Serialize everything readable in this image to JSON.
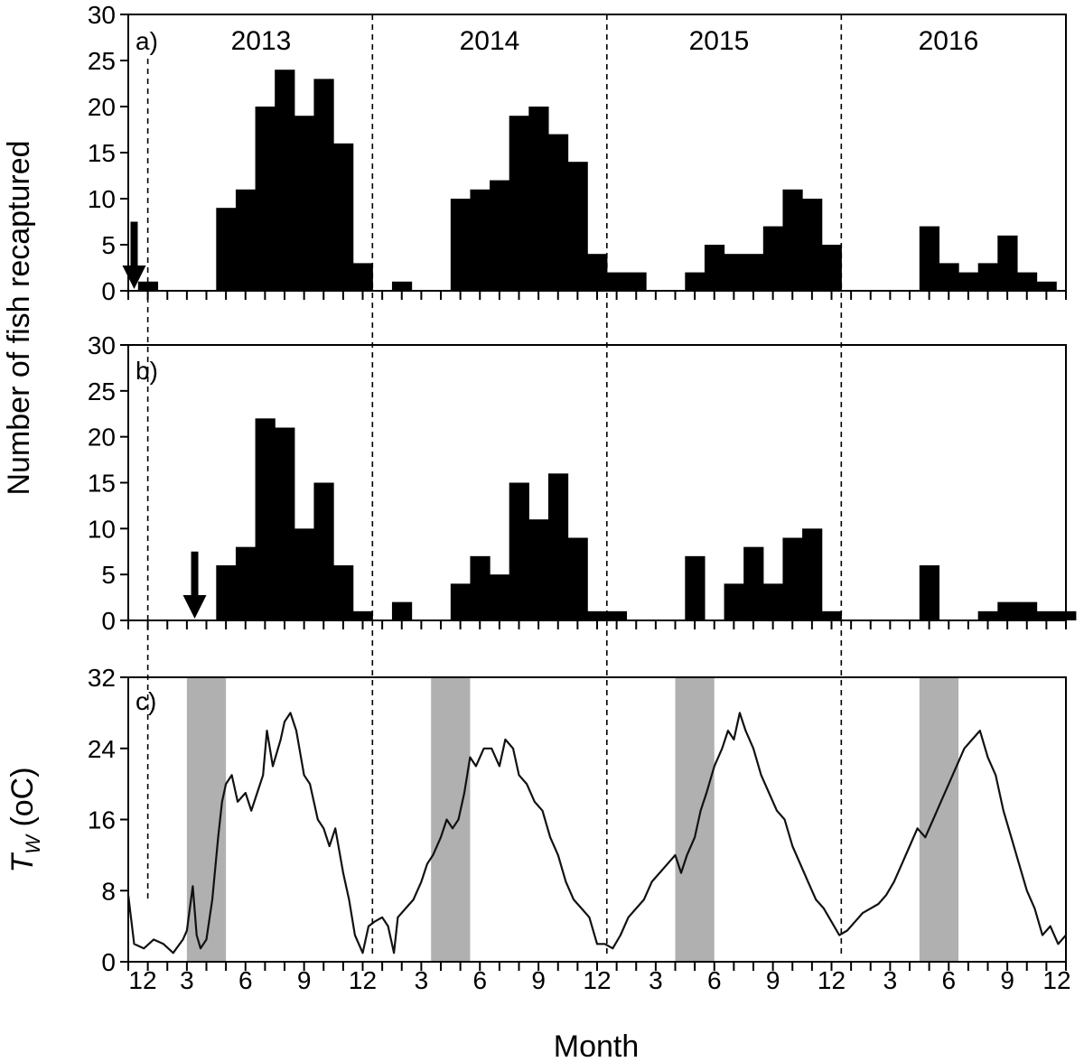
{
  "chart_data": [
    {
      "panel": "a",
      "type": "bar",
      "panel_label": "a)",
      "ylim": [
        0,
        30
      ],
      "yticks": [
        0,
        5,
        10,
        15,
        20,
        25,
        30
      ],
      "year_labels": [
        "2013",
        "2014",
        "2015",
        "2016"
      ],
      "release_arrow_month": 0.3,
      "values": [
        1,
        0,
        0,
        0,
        9,
        11,
        20,
        24,
        19,
        23,
        16,
        3,
        0,
        1,
        0,
        0,
        10,
        11,
        12,
        19,
        20,
        17,
        14,
        4,
        2,
        2,
        0,
        0,
        2,
        5,
        4,
        4,
        7,
        11,
        10,
        5,
        0,
        0,
        0,
        0,
        7,
        3,
        2,
        3,
        6,
        2,
        1,
        0
      ]
    },
    {
      "panel": "b",
      "type": "bar",
      "panel_label": "b)",
      "ylim": [
        0,
        30
      ],
      "yticks": [
        0,
        5,
        10,
        15,
        20,
        25,
        30
      ],
      "release_arrow_month": 3.4,
      "values": [
        0,
        0,
        0,
        0,
        6,
        8,
        22,
        21,
        10,
        15,
        6,
        1,
        0,
        2,
        0,
        0,
        4,
        7,
        5,
        15,
        11,
        16,
        9,
        1,
        1,
        0,
        0,
        0,
        7,
        0,
        4,
        8,
        4,
        9,
        10,
        1,
        0,
        0,
        0,
        0,
        6,
        0,
        0,
        1,
        2,
        2,
        1,
        1
      ]
    },
    {
      "panel": "c",
      "type": "line",
      "panel_label": "c)",
      "ylabel": "T",
      "ylabel_sub": "W",
      "ylabel_unit": " (oC)",
      "ylim": [
        0,
        32
      ],
      "yticks": [
        0,
        8,
        16,
        24,
        32
      ],
      "shaded_months": [
        [
          3,
          5
        ],
        [
          15.5,
          17.5
        ],
        [
          28,
          30
        ],
        [
          40.5,
          42.5
        ]
      ],
      "temperature": [
        [
          0,
          7.5
        ],
        [
          0.3,
          2
        ],
        [
          0.8,
          1.5
        ],
        [
          1.3,
          2.5
        ],
        [
          1.8,
          2
        ],
        [
          2.3,
          1
        ],
        [
          2.8,
          2.5
        ],
        [
          3.0,
          3.5
        ],
        [
          3.3,
          8.5
        ],
        [
          3.5,
          3
        ],
        [
          3.7,
          1.5
        ],
        [
          4.0,
          2.5
        ],
        [
          4.3,
          7
        ],
        [
          4.6,
          14
        ],
        [
          4.8,
          18
        ],
        [
          5.0,
          20
        ],
        [
          5.3,
          21
        ],
        [
          5.6,
          18
        ],
        [
          6.0,
          19
        ],
        [
          6.3,
          17
        ],
        [
          6.6,
          19
        ],
        [
          6.9,
          21
        ],
        [
          7.1,
          26
        ],
        [
          7.4,
          22
        ],
        [
          7.8,
          25
        ],
        [
          8.0,
          27
        ],
        [
          8.3,
          28
        ],
        [
          8.6,
          26
        ],
        [
          9.0,
          21
        ],
        [
          9.3,
          20
        ],
        [
          9.7,
          16
        ],
        [
          10.0,
          15
        ],
        [
          10.3,
          13
        ],
        [
          10.6,
          15
        ],
        [
          11.0,
          10
        ],
        [
          11.3,
          7
        ],
        [
          11.6,
          3
        ],
        [
          12.0,
          1
        ],
        [
          12.3,
          4
        ],
        [
          12.6,
          4.5
        ],
        [
          13.0,
          5
        ],
        [
          13.3,
          4
        ],
        [
          13.6,
          1
        ],
        [
          13.8,
          5
        ],
        [
          14.2,
          6
        ],
        [
          14.6,
          7
        ],
        [
          15.0,
          9
        ],
        [
          15.3,
          11
        ],
        [
          15.6,
          12
        ],
        [
          16.0,
          14
        ],
        [
          16.3,
          16
        ],
        [
          16.6,
          15
        ],
        [
          16.9,
          16
        ],
        [
          17.2,
          19
        ],
        [
          17.5,
          23
        ],
        [
          17.8,
          22
        ],
        [
          18.2,
          24
        ],
        [
          18.6,
          24
        ],
        [
          19.0,
          22
        ],
        [
          19.3,
          25
        ],
        [
          19.7,
          24
        ],
        [
          20.0,
          21
        ],
        [
          20.4,
          20
        ],
        [
          20.8,
          18
        ],
        [
          21.2,
          17
        ],
        [
          21.6,
          14
        ],
        [
          22.0,
          12
        ],
        [
          22.4,
          9
        ],
        [
          22.8,
          7
        ],
        [
          23.2,
          6
        ],
        [
          23.6,
          5
        ],
        [
          24.0,
          2
        ],
        [
          24.4,
          2
        ],
        [
          24.8,
          1.5
        ],
        [
          25.2,
          3
        ],
        [
          25.6,
          5
        ],
        [
          26.0,
          6
        ],
        [
          26.4,
          7
        ],
        [
          26.8,
          9
        ],
        [
          27.2,
          10
        ],
        [
          27.6,
          11
        ],
        [
          28.0,
          12
        ],
        [
          28.3,
          10
        ],
        [
          28.6,
          12
        ],
        [
          29.0,
          14
        ],
        [
          29.3,
          17
        ],
        [
          29.6,
          19
        ],
        [
          30.0,
          22
        ],
        [
          30.4,
          24
        ],
        [
          30.7,
          26
        ],
        [
          31.0,
          25
        ],
        [
          31.3,
          28
        ],
        [
          31.6,
          26
        ],
        [
          32.0,
          24
        ],
        [
          32.4,
          21
        ],
        [
          32.8,
          19
        ],
        [
          33.2,
          17
        ],
        [
          33.6,
          16
        ],
        [
          34.0,
          13
        ],
        [
          34.4,
          11
        ],
        [
          34.8,
          9
        ],
        [
          35.2,
          7
        ],
        [
          35.6,
          6
        ],
        [
          36.0,
          4.5
        ],
        [
          36.4,
          3
        ],
        [
          36.8,
          3.5
        ],
        [
          37.2,
          4.5
        ],
        [
          37.6,
          5.5
        ],
        [
          38.0,
          6
        ],
        [
          38.4,
          6.5
        ],
        [
          38.8,
          7.5
        ],
        [
          39.2,
          9
        ],
        [
          39.6,
          11
        ],
        [
          40.0,
          13
        ],
        [
          40.4,
          15
        ],
        [
          40.8,
          14
        ],
        [
          41.2,
          16
        ],
        [
          41.6,
          18
        ],
        [
          42.0,
          20
        ],
        [
          42.4,
          22
        ],
        [
          42.8,
          24
        ],
        [
          43.2,
          25
        ],
        [
          43.6,
          26
        ],
        [
          44.0,
          23
        ],
        [
          44.4,
          21
        ],
        [
          44.8,
          17
        ],
        [
          45.2,
          14
        ],
        [
          45.6,
          11
        ],
        [
          46.0,
          8
        ],
        [
          46.4,
          6
        ],
        [
          46.8,
          3
        ],
        [
          47.2,
          4
        ],
        [
          47.6,
          2
        ],
        [
          48.0,
          3
        ]
      ]
    }
  ],
  "x_axis": {
    "tick_labels": [
      "12",
      "3",
      "6",
      "9",
      "12",
      "3",
      "6",
      "9",
      "12",
      "3",
      "6",
      "9",
      "12",
      "3",
      "6",
      "9",
      "12"
    ],
    "xlabel": "Month"
  },
  "shared_ylabel": "Number of fish recaptured"
}
